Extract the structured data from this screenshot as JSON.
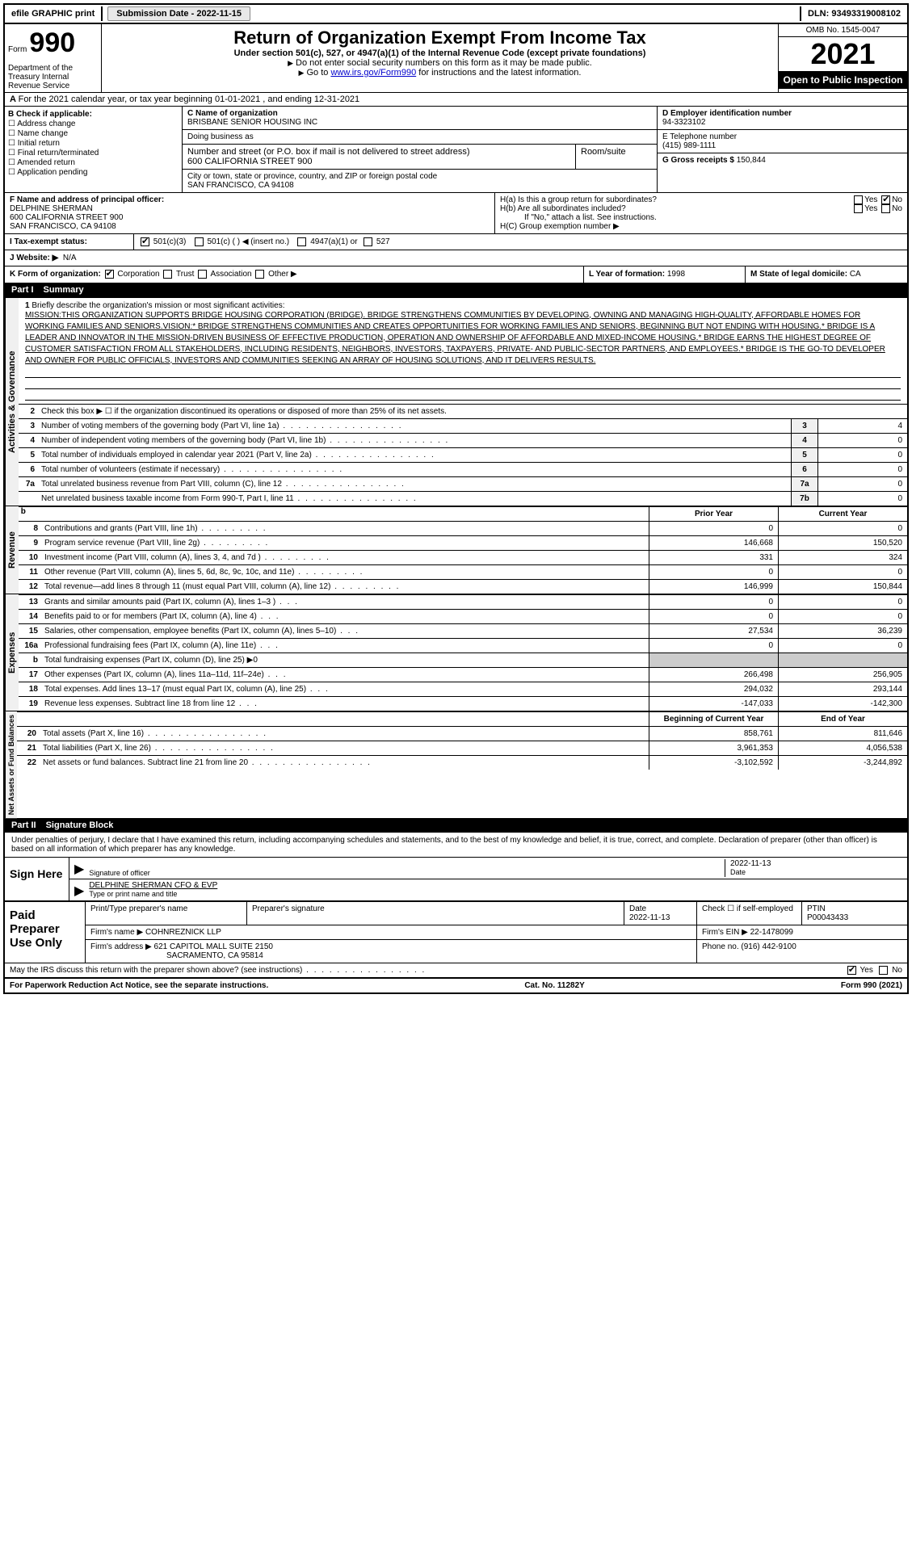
{
  "topbar": {
    "efile": "efile GRAPHIC print",
    "submission_label": "Submission Date - ",
    "submission_date": "2022-11-15",
    "dln_label": "DLN: ",
    "dln": "93493319008102"
  },
  "header": {
    "form_label": "Form",
    "form_number": "990",
    "title": "Return of Organization Exempt From Income Tax",
    "subtitle": "Under section 501(c), 527, or 4947(a)(1) of the Internal Revenue Code (except private foundations)",
    "note1": "Do not enter social security numbers on this form as it may be made public.",
    "note2_pre": "Go to ",
    "note2_link": "www.irs.gov/Form990",
    "note2_post": " for instructions and the latest information.",
    "omb": "OMB No. 1545-0047",
    "year": "2021",
    "inspection": "Open to Public Inspection",
    "dept": "Department of the Treasury Internal Revenue Service"
  },
  "section_a": {
    "text": "For the 2021 calendar year, or tax year beginning 01-01-2021    , and ending 12-31-2021"
  },
  "section_b": {
    "label": "B Check if applicable:",
    "opts": [
      "Address change",
      "Name change",
      "Initial return",
      "Final return/terminated",
      "Amended return",
      "Application pending"
    ]
  },
  "section_c": {
    "label": "C Name of organization",
    "name": "BRISBANE SENIOR HOUSING INC",
    "dba_label": "Doing business as",
    "dba": "",
    "addr_label": "Number and street (or P.O. box if mail is not delivered to street address)",
    "suite_label": "Room/suite",
    "addr": "600 CALIFORNIA STREET 900",
    "city_label": "City or town, state or province, country, and ZIP or foreign postal code",
    "city": "SAN FRANCISCO, CA  94108"
  },
  "section_d": {
    "label": "D Employer identification number",
    "ein": "94-3323102"
  },
  "section_e": {
    "label": "E Telephone number",
    "phone": "(415) 989-1111"
  },
  "section_g": {
    "label": "G Gross receipts $ ",
    "amount": "150,844"
  },
  "section_f": {
    "label": "F  Name and address of principal officer:",
    "name": "DELPHINE SHERMAN",
    "addr1": "600 CALIFORNIA STREET 900",
    "addr2": "SAN FRANCISCO, CA  94108"
  },
  "section_h": {
    "ha": "H(a)  Is this a group return for subordinates?",
    "hb": "H(b)  Are all subordinates included?",
    "hb_note": "If \"No,\" attach a list. See instructions.",
    "hc": "H(C)  Group exemption number ▶",
    "yes": "Yes",
    "no": "No"
  },
  "section_i": {
    "label": "I   Tax-exempt status:",
    "opt1": "501(c)(3)",
    "opt2": "501(c) (  ) ◀ (insert no.)",
    "opt3": "4947(a)(1) or",
    "opt4": "527"
  },
  "section_j": {
    "label": "J  Website: ▶",
    "value": "N/A"
  },
  "section_k": {
    "label": "K Form of organization:",
    "opts": [
      "Corporation",
      "Trust",
      "Association",
      "Other ▶"
    ]
  },
  "section_l": {
    "label": "L Year of formation: ",
    "value": "1998"
  },
  "section_m": {
    "label": "M State of legal domicile: ",
    "value": "CA"
  },
  "part1": {
    "label": "Part I",
    "title": "Summary"
  },
  "activities": {
    "label": "Activities & Governance",
    "line1_label": "Briefly describe the organization's mission or most significant activities:",
    "mission": "MISSION:THIS ORGANIZATION SUPPORTS BRIDGE HOUSING CORPORATION (BRIDGE). BRIDGE STRENGTHENS COMMUNITIES BY DEVELOPING, OWNING AND MANAGING HIGH-QUALITY, AFFORDABLE HOMES FOR WORKING FAMILIES AND SENIORS.VISION:* BRIDGE STRENGTHENS COMMUNITIES AND CREATES OPPORTUNITIES FOR WORKING FAMILIES AND SENIORS, BEGINNING BUT NOT ENDING WITH HOUSING.* BRIDGE IS A LEADER AND INNOVATOR IN THE MISSION-DRIVEN BUSINESS OF EFFECTIVE PRODUCTION, OPERATION AND OWNERSHIP OF AFFORDABLE AND MIXED-INCOME HOUSING.* BRIDGE EARNS THE HIGHEST DEGREE OF CUSTOMER SATISFACTION FROM ALL STAKEHOLDERS, INCLUDING RESIDENTS, NEIGHBORS, INVESTORS, TAXPAYERS, PRIVATE- AND PUBLIC-SECTOR PARTNERS, AND EMPLOYEES.* BRIDGE IS THE GO-TO DEVELOPER AND OWNER FOR PUBLIC OFFICIALS, INVESTORS AND COMMUNITIES SEEKING AN ARRAY OF HOUSING SOLUTIONS, AND IT DELIVERS RESULTS.",
    "line2": "Check this box ▶ ☐ if the organization discontinued its operations or disposed of more than 25% of its net assets.",
    "rows": [
      {
        "n": "3",
        "lbl": "Number of voting members of the governing body (Part VI, line 1a)",
        "box": "3",
        "val": "4"
      },
      {
        "n": "4",
        "lbl": "Number of independent voting members of the governing body (Part VI, line 1b)",
        "box": "4",
        "val": "0"
      },
      {
        "n": "5",
        "lbl": "Total number of individuals employed in calendar year 2021 (Part V, line 2a)",
        "box": "5",
        "val": "0"
      },
      {
        "n": "6",
        "lbl": "Total number of volunteers (estimate if necessary)",
        "box": "6",
        "val": "0"
      },
      {
        "n": "7a",
        "lbl": "Total unrelated business revenue from Part VIII, column (C), line 12",
        "box": "7a",
        "val": "0"
      },
      {
        "n": "",
        "lbl": "Net unrelated business taxable income from Form 990-T, Part I, line 11",
        "box": "7b",
        "val": "0"
      }
    ]
  },
  "revenue": {
    "label": "Revenue",
    "head_prior": "Prior Year",
    "head_current": "Current Year",
    "rows": [
      {
        "n": "8",
        "lbl": "Contributions and grants (Part VIII, line 1h)",
        "c1": "0",
        "c2": "0"
      },
      {
        "n": "9",
        "lbl": "Program service revenue (Part VIII, line 2g)",
        "c1": "146,668",
        "c2": "150,520"
      },
      {
        "n": "10",
        "lbl": "Investment income (Part VIII, column (A), lines 3, 4, and 7d )",
        "c1": "331",
        "c2": "324"
      },
      {
        "n": "11",
        "lbl": "Other revenue (Part VIII, column (A), lines 5, 6d, 8c, 9c, 10c, and 11e)",
        "c1": "0",
        "c2": "0"
      },
      {
        "n": "12",
        "lbl": "Total revenue—add lines 8 through 11 (must equal Part VIII, column (A), line 12)",
        "c1": "146,999",
        "c2": "150,844"
      }
    ]
  },
  "expenses": {
    "label": "Expenses",
    "rows": [
      {
        "n": "13",
        "lbl": "Grants and similar amounts paid (Part IX, column (A), lines 1–3 )",
        "c1": "0",
        "c2": "0"
      },
      {
        "n": "14",
        "lbl": "Benefits paid to or for members (Part IX, column (A), line 4)",
        "c1": "0",
        "c2": "0"
      },
      {
        "n": "15",
        "lbl": "Salaries, other compensation, employee benefits (Part IX, column (A), lines 5–10)",
        "c1": "27,534",
        "c2": "36,239"
      },
      {
        "n": "16a",
        "lbl": "Professional fundraising fees (Part IX, column (A), line 11e)",
        "c1": "0",
        "c2": "0"
      },
      {
        "n": "b",
        "lbl": "Total fundraising expenses (Part IX, column (D), line 25) ▶0",
        "c1": "",
        "c2": "",
        "shaded": true
      },
      {
        "n": "17",
        "lbl": "Other expenses (Part IX, column (A), lines 11a–11d, 11f–24e)",
        "c1": "266,498",
        "c2": "256,905"
      },
      {
        "n": "18",
        "lbl": "Total expenses. Add lines 13–17 (must equal Part IX, column (A), line 25)",
        "c1": "294,032",
        "c2": "293,144"
      },
      {
        "n": "19",
        "lbl": "Revenue less expenses. Subtract line 18 from line 12",
        "c1": "-147,033",
        "c2": "-142,300"
      }
    ]
  },
  "netassets": {
    "label": "Net Assets or Fund Balances",
    "head_beg": "Beginning of Current Year",
    "head_end": "End of Year",
    "rows": [
      {
        "n": "20",
        "lbl": "Total assets (Part X, line 16)",
        "c1": "858,761",
        "c2": "811,646"
      },
      {
        "n": "21",
        "lbl": "Total liabilities (Part X, line 26)",
        "c1": "3,961,353",
        "c2": "4,056,538"
      },
      {
        "n": "22",
        "lbl": "Net assets or fund balances. Subtract line 21 from line 20",
        "c1": "-3,102,592",
        "c2": "-3,244,892"
      }
    ]
  },
  "part2": {
    "label": "Part II",
    "title": "Signature Block"
  },
  "signature": {
    "declaration": "Under penalties of perjury, I declare that I have examined this return, including accompanying schedules and statements, and to the best of my knowledge and belief, it is true, correct, and complete. Declaration of preparer (other than officer) is based on all information of which preparer has any knowledge.",
    "sign_here": "Sign Here",
    "sig_label": "Signature of officer",
    "date": "2022-11-13",
    "date_label": "Date",
    "name": "DELPHINE SHERMAN  CFO & EVP",
    "name_label": "Type or print name and title"
  },
  "preparer": {
    "title": "Paid Preparer Use Only",
    "print_label": "Print/Type preparer's name",
    "sig_label": "Preparer's signature",
    "date_label": "Date",
    "date": "2022-11-13",
    "check_label": "Check ☐ if self-employed",
    "ptin_label": "PTIN",
    "ptin": "P00043433",
    "firm_name_label": "Firm's name    ▶ ",
    "firm_name": "COHNREZNICK LLP",
    "firm_ein_label": "Firm's EIN ▶ ",
    "firm_ein": "22-1478099",
    "firm_addr_label": "Firm's address ▶ ",
    "firm_addr1": "621 CAPITOL MALL SUITE 2150",
    "firm_addr2": "SACRAMENTO, CA  95814",
    "phone_label": "Phone no. ",
    "phone": "(916) 442-9100"
  },
  "footer": {
    "discuss": "May the IRS discuss this return with the preparer shown above? (see instructions)",
    "yes": "Yes",
    "no": "No",
    "paperwork": "For Paperwork Reduction Act Notice, see the separate instructions.",
    "cat": "Cat. No. 11282Y",
    "form": "Form 990 (2021)"
  }
}
